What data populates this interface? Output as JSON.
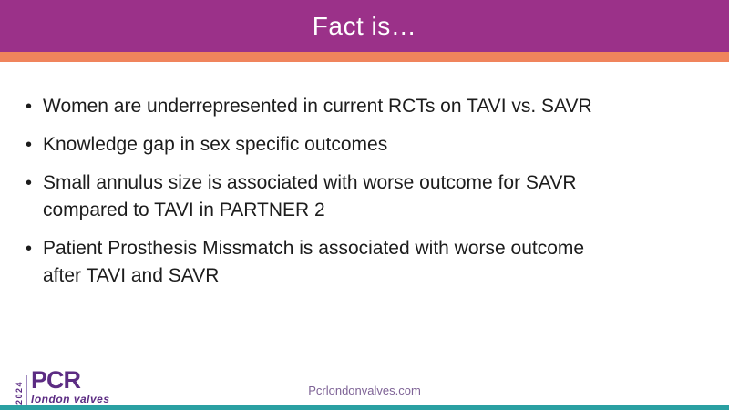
{
  "slide": {
    "title": "Fact is…",
    "bullets": [
      "Women are underrepresented in current RCTs on TAVI vs. SAVR",
      "Knowledge gap in sex specific outcomes",
      "Small annulus size is associated with worse outcome for SAVR\ncompared to TAVI in PARTNER 2",
      "Patient Prosthesis Missmatch is associated with worse outcome\nafter TAVI and SAVR"
    ],
    "bullet_glyph": "•",
    "logo": {
      "year": "2024",
      "brand": "PCR",
      "tagline": "london valves"
    },
    "footer": {
      "url": "Pcrlondonvalves.com"
    },
    "colors": {
      "header_purple": "#9B3189",
      "accent_orange": "#F0845C",
      "title_text": "#FFFFFF",
      "body_text": "#1C1C1C",
      "logo_purple": "#5C2C83",
      "footer_text": "#7E6396",
      "bottom_bar_teal": "#2AA0A2",
      "slide_bg": "#FFFFFF"
    }
  }
}
